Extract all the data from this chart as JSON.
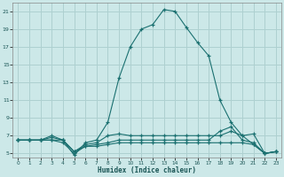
{
  "xlabel": "Humidex (Indice chaleur)",
  "bg_color": "#cce8e8",
  "grid_color": "#aed0d0",
  "line_color": "#1a7070",
  "xlim": [
    -0.5,
    23.5
  ],
  "ylim": [
    4.5,
    22
  ],
  "xticks": [
    0,
    1,
    2,
    3,
    4,
    5,
    6,
    7,
    8,
    9,
    10,
    11,
    12,
    13,
    14,
    15,
    16,
    17,
    18,
    19,
    20,
    21,
    22,
    23
  ],
  "yticks": [
    5,
    7,
    9,
    11,
    13,
    15,
    17,
    19,
    21
  ],
  "series1_x": [
    0,
    1,
    2,
    3,
    4,
    5,
    6,
    7,
    8,
    9,
    10,
    11,
    12,
    13,
    14,
    15,
    16,
    17,
    18,
    19,
    20,
    21,
    22,
    23
  ],
  "series1_y": [
    6.5,
    6.5,
    6.5,
    7.0,
    6.5,
    4.8,
    6.2,
    6.5,
    8.5,
    13.5,
    17.0,
    19.0,
    19.5,
    21.2,
    21.0,
    19.2,
    17.5,
    16.0,
    11.0,
    8.5,
    7.0,
    6.0,
    5.0,
    5.2
  ],
  "series2_x": [
    0,
    1,
    2,
    3,
    4,
    5,
    6,
    7,
    8,
    9,
    10,
    11,
    12,
    13,
    14,
    15,
    16,
    17,
    18,
    19,
    20,
    21,
    22,
    23
  ],
  "series2_y": [
    6.5,
    6.5,
    6.5,
    6.8,
    6.5,
    5.2,
    6.0,
    6.2,
    7.0,
    7.2,
    7.0,
    7.0,
    7.0,
    7.0,
    7.0,
    7.0,
    7.0,
    7.0,
    7.0,
    7.5,
    7.0,
    7.2,
    5.0,
    5.2
  ],
  "series3_x": [
    0,
    1,
    2,
    3,
    4,
    5,
    6,
    7,
    8,
    9,
    10,
    11,
    12,
    13,
    14,
    15,
    16,
    17,
    18,
    19,
    20,
    21,
    22,
    23
  ],
  "series3_y": [
    6.5,
    6.5,
    6.5,
    6.5,
    6.2,
    5.0,
    5.8,
    6.0,
    6.2,
    6.5,
    6.5,
    6.5,
    6.5,
    6.5,
    6.5,
    6.5,
    6.5,
    6.5,
    7.5,
    8.0,
    6.5,
    6.2,
    5.0,
    5.2
  ],
  "series4_x": [
    0,
    1,
    2,
    3,
    4,
    5,
    6,
    7,
    8,
    9,
    10,
    11,
    12,
    13,
    14,
    15,
    16,
    17,
    18,
    19,
    20,
    21,
    22,
    23
  ],
  "series4_y": [
    6.5,
    6.5,
    6.5,
    6.5,
    6.5,
    5.2,
    5.8,
    5.8,
    6.0,
    6.2,
    6.2,
    6.2,
    6.2,
    6.2,
    6.2,
    6.2,
    6.2,
    6.2,
    6.2,
    6.2,
    6.2,
    6.0,
    5.0,
    5.2
  ]
}
